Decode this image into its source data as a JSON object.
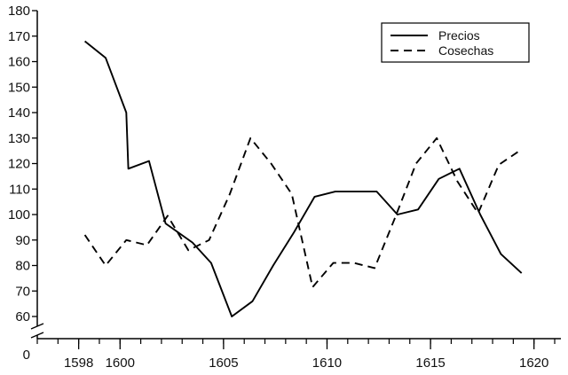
{
  "chart_data": {
    "type": "line",
    "title": "",
    "xlabel": "",
    "ylabel": "",
    "xlim": [
      1596,
      1621.3
    ],
    "ylim": [
      50,
      180
    ],
    "axis_break": true,
    "x_ticks": [
      1598,
      1600,
      1605,
      1610,
      1615,
      1620
    ],
    "x_minor_step": 1,
    "y_ticks": [
      60,
      70,
      80,
      90,
      100,
      110,
      120,
      130,
      140,
      150,
      160,
      170,
      180
    ],
    "y_zero_label": "0",
    "grid": false,
    "legend_position": "top-right",
    "series": [
      {
        "name": "Precios",
        "style": "solid",
        "color": "#000000",
        "x": [
          1598.3,
          1599.3,
          1600.3,
          1600.4,
          1601.4,
          1602.2,
          1603.5,
          1604.4,
          1605.4,
          1606.4,
          1607.4,
          1608.4,
          1609.4,
          1610.4,
          1611.4,
          1612.4,
          1613.4,
          1614.4,
          1615.4,
          1616.4,
          1617.4,
          1618.4,
          1619.4
        ],
        "y": [
          168,
          161.5,
          140,
          118,
          121,
          96.5,
          89,
          81,
          60,
          66,
          80,
          93,
          107,
          109,
          109,
          109,
          100,
          102,
          114,
          118,
          100,
          84.5,
          77
        ]
      },
      {
        "name": "Cosechas",
        "style": "dashed",
        "color": "#000000",
        "x": [
          1598.3,
          1599.3,
          1600.3,
          1601.3,
          1602.3,
          1603.3,
          1604.3,
          1605.3,
          1606.3,
          1607.3,
          1608.3,
          1609.3,
          1610.3,
          1611.3,
          1612.3,
          1613.3,
          1614.3,
          1615.3,
          1616.3,
          1617.3,
          1618.3,
          1619.3
        ],
        "y": [
          92,
          80,
          90,
          88,
          99.5,
          86,
          90,
          108,
          130,
          120,
          108,
          71.5,
          81,
          81,
          79,
          99,
          120,
          130,
          113,
          100.5,
          119.5,
          125
        ]
      }
    ]
  }
}
